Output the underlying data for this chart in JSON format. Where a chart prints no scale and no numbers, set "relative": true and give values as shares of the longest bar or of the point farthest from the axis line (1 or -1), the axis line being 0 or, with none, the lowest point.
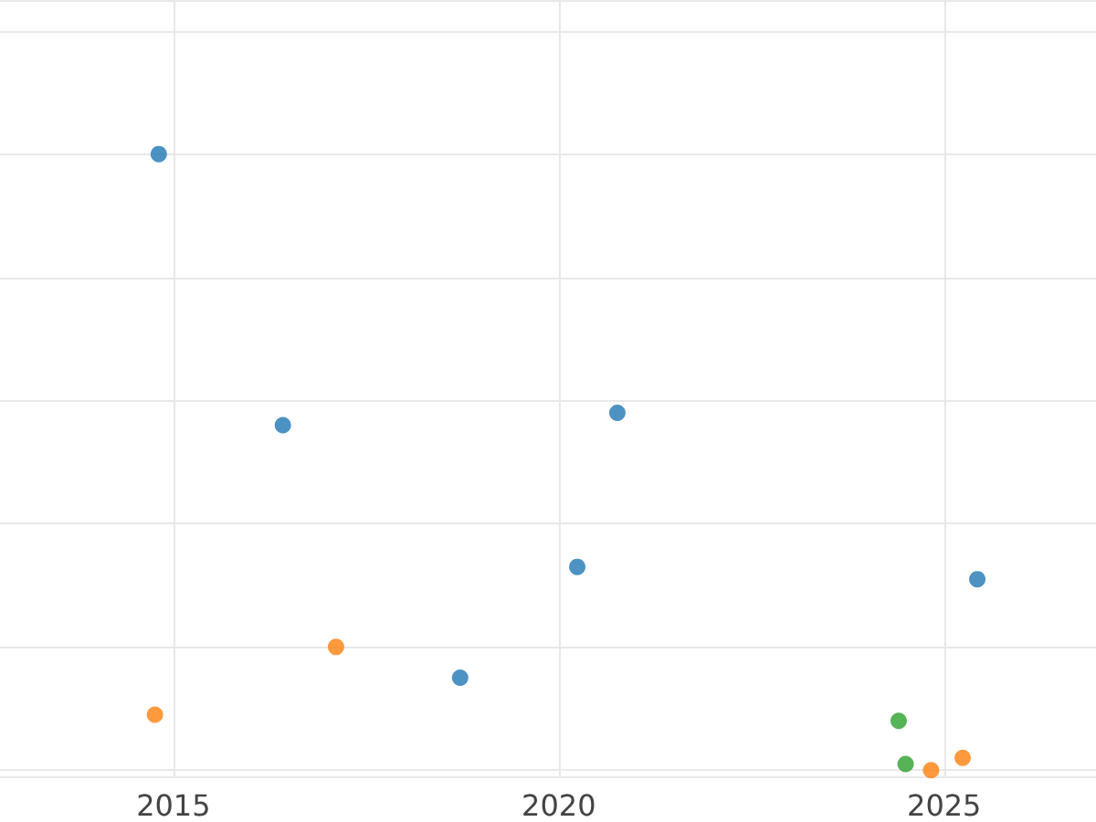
{
  "chart_data": {
    "type": "scatter",
    "relative": true,
    "grid": true,
    "marker": "circle",
    "xlim": [
      2012.75,
      2026.97
    ],
    "xticks": [
      2015,
      2020,
      2025
    ],
    "series": [
      {
        "color": "#1f77b4",
        "x": [
          2014.81,
          2016.42,
          2020.76,
          2018.72,
          2020.24,
          2025.43
        ],
        "values": [
          1,
          0.56,
          0.58,
          0.15,
          0.33,
          0.31
        ]
      },
      {
        "color": "#ff7f0e",
        "x": [
          2014.76,
          2017.11,
          2024.83,
          2025.24
        ],
        "values": [
          0.09,
          0.2,
          0,
          0.02
        ]
      },
      {
        "color": "#2ca02c",
        "x": [
          2024.41,
          2024.5
        ],
        "values": [
          0.08,
          0.01
        ]
      }
    ]
  }
}
